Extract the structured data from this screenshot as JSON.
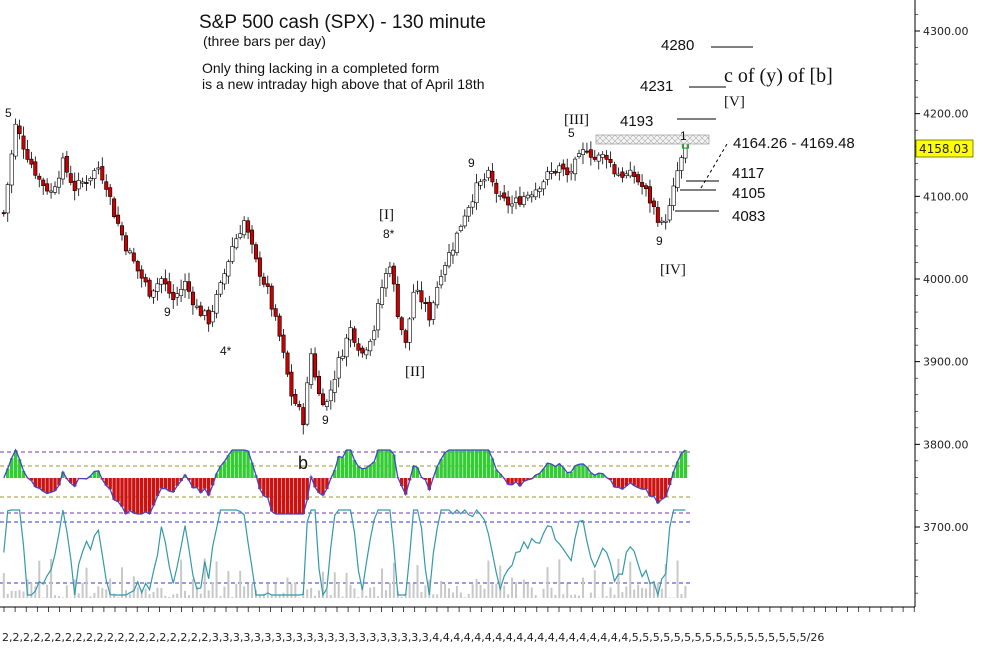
{
  "title": "S&P 500 cash (SPX) - 130 minute",
  "subtitle": "(three bars per day)",
  "note_lines": [
    "Only thing lacking in a completed form",
    "is a new intraday high above that of April 18th"
  ],
  "price_axis": {
    "ticks": [
      "4300.00",
      "4200.00",
      "4100.00",
      "4000.00",
      "3900.00",
      "3800.00",
      "3700.00"
    ],
    "current_price_label": "4158.03",
    "current_price_color": "#ffff00"
  },
  "date_axis_text": "2,2,2,2,2,2,2,2,2,2,2,2,2,2,2,2,2,2,2,2,3,3,3,3,3,3,3,3,3,3,3,3,3,3,3,3,3,3,3,3,3,4,4,4,4,4,4,4,4,4,4,4,4,4,4,4,4,4,4,4,5,5,5,5,5,5,5,5,5,5,5,5,5,5,5,5,5/26",
  "level_labels": {
    "l4280": "4280",
    "l4231": "4231",
    "l4193": "4193",
    "zone": "4164.26 - 4169.48",
    "l4117": "4117",
    "l4105": "4105",
    "l4083": "4083"
  },
  "wave_labels": {
    "cyb": "c of (y) of [b]",
    "w5": "[V]",
    "w4": "[IV]",
    "w3": "[III]",
    "w1": "[I]",
    "w2": "[II]",
    "b": "b"
  },
  "count_labels": {
    "c5_left": "5",
    "c9_a": "9",
    "c4star": "4*",
    "c8star": "8*",
    "c9_b": "9",
    "c9_red": "9",
    "c5_top": "5",
    "c1_red": "1",
    "c9_c": "9"
  },
  "colors": {
    "down_candle": "#cc0000",
    "up_candle": "#ffffff",
    "count_blue": "#2233cc",
    "count_red": "#dd1111",
    "count_olive": "#8a7a20",
    "osc_green": "#33cc33",
    "osc_red": "#cc1111",
    "osc_line": "#4444cc",
    "lower_line": "#3399aa"
  },
  "chart_data": {
    "type": "candlestick",
    "title": "S&P 500 cash (SPX) - 130 minute",
    "ylim": [
      3610,
      4330
    ],
    "close_path": [
      [
        0,
        4080
      ],
      [
        3,
        4185
      ],
      [
        6,
        4150
      ],
      [
        9,
        4120
      ],
      [
        12,
        4105
      ],
      [
        15,
        4140
      ],
      [
        18,
        4110
      ],
      [
        21,
        4120
      ],
      [
        24,
        4135
      ],
      [
        26,
        4115
      ],
      [
        28,
        4080
      ],
      [
        31,
        4040
      ],
      [
        34,
        4010
      ],
      [
        37,
        3985
      ],
      [
        40,
        4000
      ],
      [
        43,
        3975
      ],
      [
        46,
        3995
      ],
      [
        49,
        3965
      ],
      [
        52,
        3950
      ],
      [
        55,
        3990
      ],
      [
        58,
        4040
      ],
      [
        61,
        4070
      ],
      [
        64,
        4020
      ],
      [
        67,
        3985
      ],
      [
        70,
        3930
      ],
      [
        73,
        3860
      ],
      [
        76,
        3830
      ],
      [
        78,
        3910
      ],
      [
        80,
        3860
      ],
      [
        82,
        3850
      ],
      [
        85,
        3900
      ],
      [
        88,
        3940
      ],
      [
        91,
        3910
      ],
      [
        94,
        3940
      ],
      [
        96,
        3990
      ],
      [
        98,
        4020
      ],
      [
        100,
        3960
      ],
      [
        102,
        3920
      ],
      [
        104,
        3985
      ],
      [
        106,
        3975
      ],
      [
        108,
        3955
      ],
      [
        111,
        4010
      ],
      [
        114,
        4040
      ],
      [
        117,
        4080
      ],
      [
        120,
        4110
      ],
      [
        123,
        4125
      ],
      [
        126,
        4095
      ],
      [
        129,
        4090
      ],
      [
        132,
        4100
      ],
      [
        135,
        4110
      ],
      [
        138,
        4125
      ],
      [
        141,
        4135
      ],
      [
        143,
        4125
      ],
      [
        146,
        4145
      ],
      [
        148,
        4160
      ],
      [
        150,
        4145
      ],
      [
        153,
        4150
      ],
      [
        155,
        4130
      ],
      [
        158,
        4125
      ],
      [
        160,
        4125
      ],
      [
        163,
        4105
      ],
      [
        165,
        4085
      ],
      [
        167,
        4065
      ],
      [
        169,
        4085
      ],
      [
        171,
        4130
      ],
      [
        173,
        4158
      ]
    ]
  }
}
